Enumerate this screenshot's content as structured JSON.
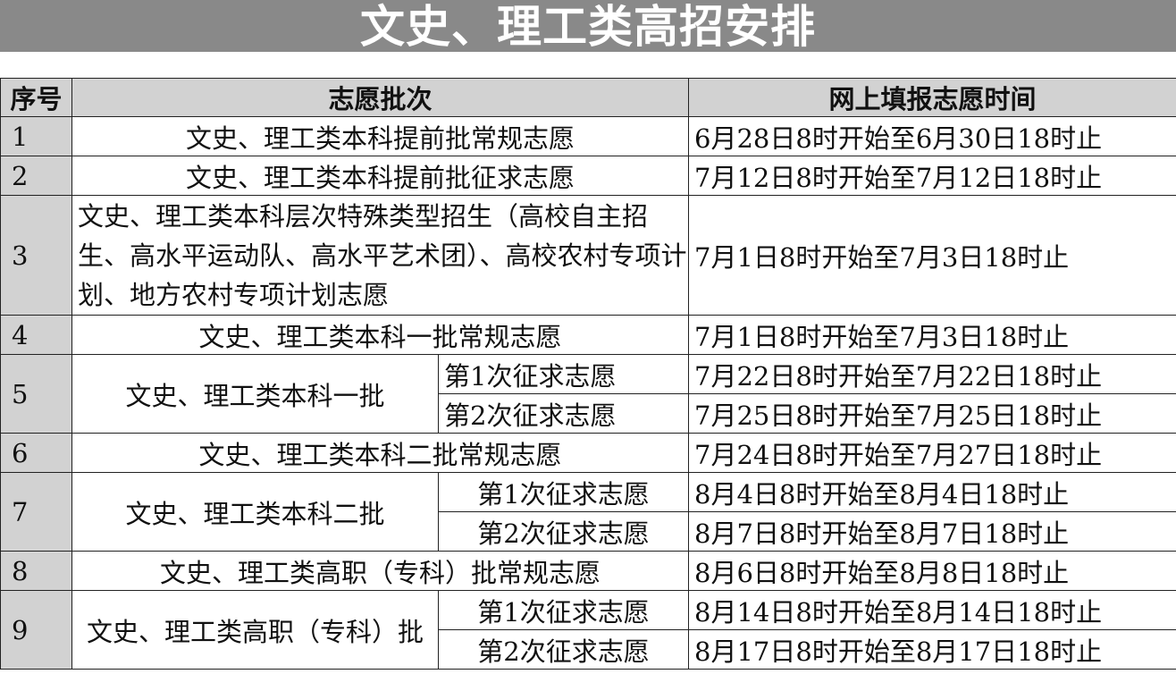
{
  "title": "文史、理工类高招安排",
  "headers": [
    "序号",
    "志愿批次",
    "网上填报志愿时间"
  ],
  "rows": [
    {
      "no": "1",
      "batch": "文史、理工类本科提前批常规志愿",
      "time": "6月28日8时开始至6月30日18时止"
    },
    {
      "no": "2",
      "batch": "文史、理工类本科提前批征求志愿",
      "time": "7月12日8时开始至7月12日18时止"
    },
    {
      "no": "3",
      "batch": "文史、理工类本科层次特殊类型招生（高校自主招生、高水平运动队、高水平艺术团）、高校农村专项计划、地方农村专项计划志愿",
      "time": "7月1日8时开始至7月3日18时止"
    },
    {
      "no": "4",
      "batch": "文史、理工类本科一批常规志愿",
      "time": "7月1日8时开始至7月3日18时止"
    },
    {
      "no": "5",
      "batch": "文史、理工类本科一批",
      "sub": [
        {
          "label": "第1次征求志愿",
          "time": "7月22日8时开始至7月22日18时止"
        },
        {
          "label": "第2次征求志愿",
          "time": "7月25日8时开始至7月25日18时止"
        }
      ]
    },
    {
      "no": "6",
      "batch": "文史、理工类本科二批常规志愿",
      "time": "7月24日8时开始至7月27日18时止"
    },
    {
      "no": "7",
      "batch": "文史、理工类本科二批",
      "sub": [
        {
          "label": "第1次征求志愿",
          "time": "8月4日8时开始至8月4日18时止"
        },
        {
          "label": "第2次征求志愿",
          "time": "8月7日8时开始至8月7日18时止"
        }
      ]
    },
    {
      "no": "8",
      "batch": "文史、理工类高职（专科）批常规志愿",
      "time": "8月6日8时开始至8月8日18时止"
    },
    {
      "no": "9",
      "batch": "文史、理工类高职（专科）批",
      "sub": [
        {
          "label": "第1次征求志愿",
          "time": "8月14日8时开始至8月14日18时止"
        },
        {
          "label": "第2次征求志愿",
          "time": "8月17日8时开始至8月17日18时止"
        }
      ]
    }
  ]
}
